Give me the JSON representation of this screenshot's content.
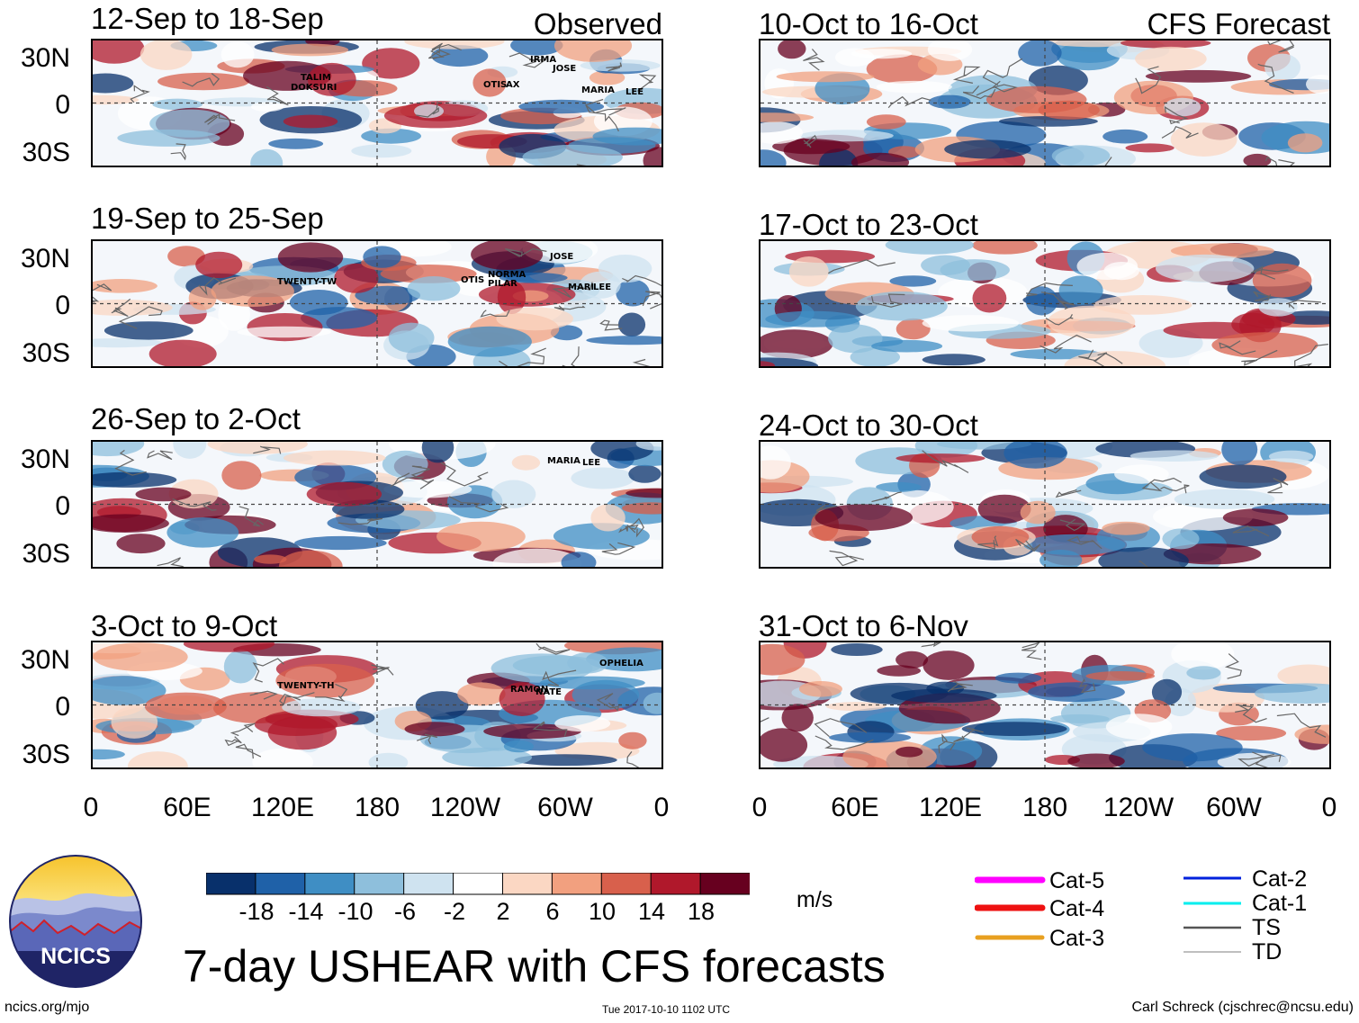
{
  "panels_left": [
    {
      "title": "12-Sep to 18-Sep",
      "label": "Observed",
      "storms": [
        "TALIM",
        "DOKSURI",
        "IRMA",
        "JOSE",
        "OTIS",
        "AX",
        "MARIA",
        "LEE"
      ]
    },
    {
      "title": "19-Sep to 25-Sep",
      "label": "",
      "storms": [
        "TWENTY-TW",
        "NORMA",
        "OTIS",
        "PILAR",
        "JOSE",
        "MARI",
        "LEE"
      ]
    },
    {
      "title": "26-Sep to 2-Oct",
      "label": "",
      "storms": [
        "MARIA",
        "LEE"
      ]
    },
    {
      "title": "3-Oct to 9-Oct",
      "label": "",
      "storms": [
        "TWENTY-TH",
        "RAMON",
        "NATE",
        "OPHELIA"
      ]
    }
  ],
  "panels_right": [
    {
      "title": "10-Oct to 16-Oct",
      "label": "CFS Forecast"
    },
    {
      "title": "17-Oct to 23-Oct",
      "label": ""
    },
    {
      "title": "24-Oct to 30-Oct",
      "label": ""
    },
    {
      "title": "31-Oct to 6-Nov",
      "label": ""
    }
  ],
  "lat_labels": [
    "30N",
    "0",
    "30S"
  ],
  "lon_labels": [
    "0",
    "60E",
    "120E",
    "180",
    "120W",
    "60W",
    "0"
  ],
  "colorbar": {
    "colors": [
      "#08306b",
      "#1f61a8",
      "#3f8ec4",
      "#8ebfdc",
      "#cfe3f0",
      "#ffffff",
      "#fbd7c3",
      "#f2a07f",
      "#d8604c",
      "#b0182b",
      "#67001f"
    ],
    "ticks": [
      "-18",
      "-14",
      "-10",
      "-6",
      "-2",
      "2",
      "6",
      "10",
      "14",
      "18"
    ],
    "units": "m/s"
  },
  "legend": {
    "left": [
      {
        "label": "Cat-5",
        "color": "#ff00ff"
      },
      {
        "label": "Cat-4",
        "color": "#ee1111"
      },
      {
        "label": "Cat-3",
        "color": "#e8a020"
      }
    ],
    "right": [
      {
        "label": "Cat-2",
        "color": "#0022dd"
      },
      {
        "label": "Cat-1",
        "color": "#00eeee"
      },
      {
        "label": "TS",
        "color": "#555555"
      },
      {
        "label": "TD",
        "color": "#aaaaaa"
      }
    ]
  },
  "logo": {
    "text": "NCICS"
  },
  "main_title": "7-day USHEAR with CFS forecasts",
  "footer": {
    "url": "ncics.org/mjo",
    "timestamp": "Tue 2017-10-10 1102 UTC",
    "author": "Carl Schreck (cjschrec@ncsu.edu)"
  }
}
